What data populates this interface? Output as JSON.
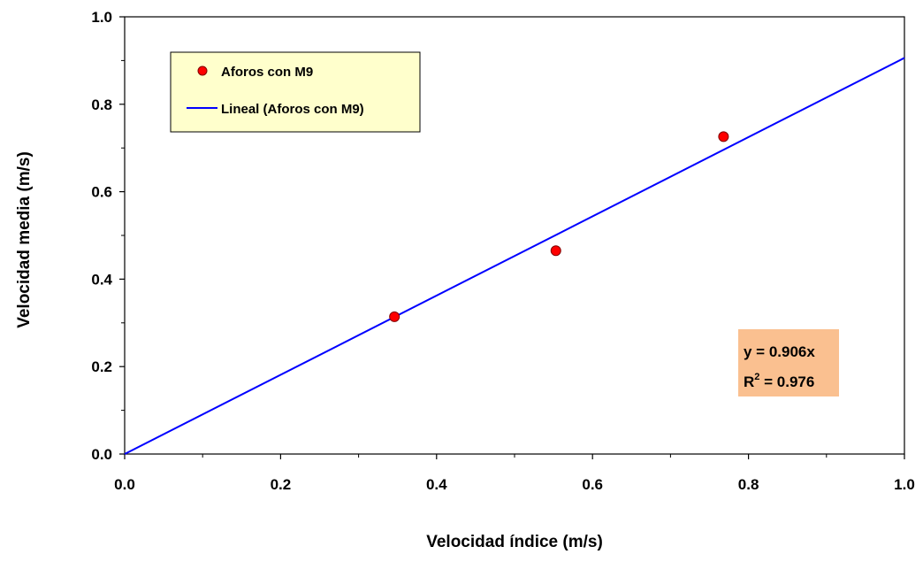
{
  "chart_data": {
    "type": "scatter",
    "xlabel": "Velocidad índice (m/s)",
    "ylabel": "Velocidad media (m/s)",
    "xlim": [
      0.0,
      1.0
    ],
    "ylim": [
      0.0,
      1.0
    ],
    "x_ticks": [
      "0.0",
      "0.2",
      "0.4",
      "0.6",
      "0.8",
      "1.0"
    ],
    "y_ticks": [
      "0.0",
      "0.2",
      "0.4",
      "0.6",
      "0.8",
      "1.0"
    ],
    "x_tick_values": [
      0.0,
      0.2,
      0.4,
      0.6,
      0.8,
      1.0
    ],
    "y_tick_values": [
      0.0,
      0.2,
      0.4,
      0.6,
      0.8,
      1.0
    ],
    "grid": false,
    "legend_position": "top-left",
    "series": [
      {
        "name": "Aforos con M9",
        "kind": "scatter",
        "color": "#ff0000",
        "x": [
          0.346,
          0.553,
          0.768
        ],
        "y": [
          0.314,
          0.465,
          0.726
        ]
      },
      {
        "name": "Lineal (Aforos con M9)",
        "kind": "line",
        "color": "#0000ff",
        "x": [
          0.0,
          1.0
        ],
        "y": [
          0.0,
          0.906
        ]
      }
    ],
    "annotation": {
      "equation": "y = 0.906x",
      "r2_prefix": "R",
      "r2_sup": "2",
      "r2_value": " = 0.976",
      "background": "#fac090"
    }
  }
}
